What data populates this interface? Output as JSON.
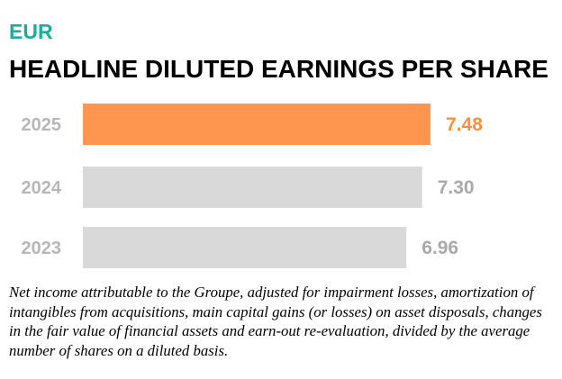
{
  "header": {
    "currency": "EUR",
    "title": "HEADLINE DILUTED EARNINGS PER SHARE"
  },
  "colors": {
    "currency_text": "#1aae9f",
    "highlight_bar": "#ff9650",
    "highlight_label": "#f7913f",
    "default_bar": "#d9d9d9",
    "category_label": "#b7b7b7",
    "default_value_label": "#a9a9a9"
  },
  "chart_data": {
    "type": "bar",
    "orientation": "horizontal",
    "title": "HEADLINE DILUTED EARNINGS PER SHARE",
    "unit": "EUR",
    "categories": [
      "2025",
      "2024",
      "2023"
    ],
    "values": [
      7.48,
      7.3,
      6.96
    ],
    "value_labels": [
      "7.48",
      "7.30",
      "6.96"
    ],
    "highlight_category": "2025",
    "xlabel": "",
    "ylabel": "",
    "grid": false,
    "legend": "none"
  },
  "footnote": "Net income attributable to the Groupe, adjusted for impairment losses, amortization of intangibles from acquisitions, main capital gains (or losses) on asset disposals, changes in the fair value of financial assets and earn-out re-evaluation, divided by the average number of shares on a diluted basis."
}
